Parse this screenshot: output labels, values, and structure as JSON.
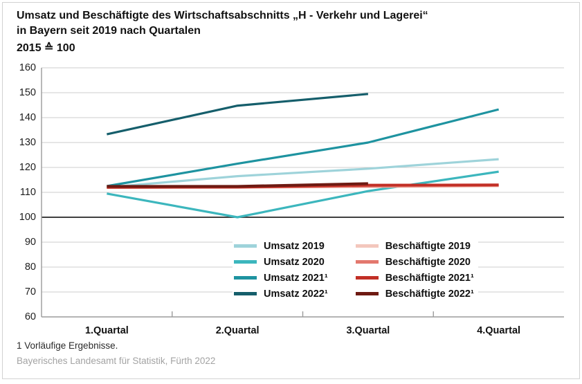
{
  "header": {
    "title_line1": "Umsatz und Beschäftigte des Wirtschaftsabschnitts „H - Verkehr und Lagerei“",
    "title_line2": "in Bayern seit 2019 nach Quartalen",
    "subtitle": "2015 ≙ 100"
  },
  "chart_data": {
    "type": "line",
    "title": "Umsatz und Beschäftigte des Wirtschaftsabschnitts „H - Verkehr und Lagerei“ in Bayern seit 2019 nach Quartalen",
    "subtitle": "2015 ≙ 100",
    "xlabel": "",
    "ylabel": "",
    "categories": [
      "1.Quartal",
      "2.Quartal",
      "3.Quartal",
      "4.Quartal"
    ],
    "ylim": [
      60,
      160
    ],
    "ytick_step": 10,
    "yticks": [
      60,
      70,
      80,
      90,
      100,
      110,
      120,
      130,
      140,
      150,
      160
    ],
    "baseline": 100,
    "grid": true,
    "legend_position": "inside-bottom-center",
    "series": [
      {
        "name": "Umsatz 2019",
        "color": "#9ed3da",
        "width": 3.2,
        "values": [
          112.0,
          116.5,
          119.5,
          123.3
        ]
      },
      {
        "name": "Umsatz 2020",
        "color": "#3cb6bd",
        "width": 3.2,
        "values": [
          109.5,
          100.0,
          110.5,
          118.3
        ]
      },
      {
        "name": "Umsatz 2021¹",
        "color": "#1e93a0",
        "width": 3.2,
        "values": [
          112.5,
          121.5,
          130.0,
          143.3
        ]
      },
      {
        "name": "Umsatz 2022¹",
        "color": "#155e6b",
        "width": 3.2,
        "values": [
          133.3,
          144.8,
          149.5,
          null
        ]
      },
      {
        "name": "Beschäftigte 2019",
        "color": "#f3c7bd",
        "width": 3.2,
        "values": [
          111.8,
          111.9,
          112.2,
          112.5
        ]
      },
      {
        "name": "Beschäftigte 2020",
        "color": "#e3786e",
        "width": 3.2,
        "values": [
          112.0,
          112.0,
          112.4,
          112.7
        ]
      },
      {
        "name": "Beschäftigte 2021¹",
        "color": "#c22f26",
        "width": 3.8,
        "values": [
          112.0,
          112.1,
          112.9,
          113.0
        ]
      },
      {
        "name": "Beschäftigte 2022¹",
        "color": "#6e1a12",
        "width": 4.0,
        "values": [
          112.4,
          112.4,
          113.5,
          null
        ]
      }
    ],
    "colors": {
      "gridline": "#cccccc",
      "baseline_100": "#3f3f3f",
      "axis": "#9b9b9b"
    }
  },
  "footer": {
    "note": "1  Vorläufige Ergebnisse.",
    "source": "Bayerisches Landesamt für Statistik, Fürth 2022"
  }
}
